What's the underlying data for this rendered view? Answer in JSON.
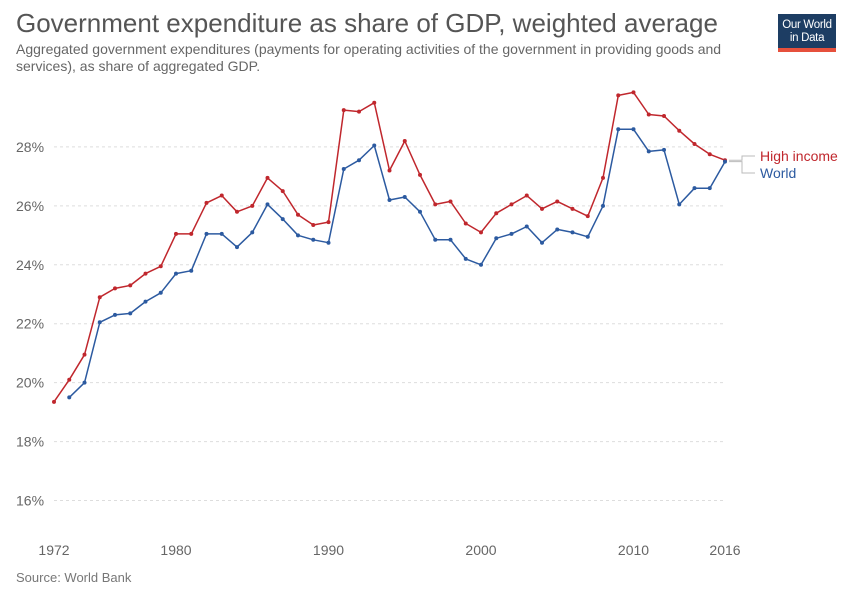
{
  "header": {
    "title": "Government expenditure as share of GDP, weighted average",
    "subtitle": "Aggregated government expenditures (payments for operating activities of the government in providing goods and services), as share of aggregated GDP.",
    "logo_line1": "Our World",
    "logo_line2": "in Data"
  },
  "footer": {
    "source": "Source: World Bank"
  },
  "chart_data": {
    "type": "line",
    "title": "Government expenditure as share of GDP, weighted average",
    "xlabel": "",
    "ylabel": "",
    "xlim": [
      1972,
      2016
    ],
    "ylim": [
      15,
      30
    ],
    "grid": true,
    "legend": "right-end labels",
    "x_ticks": [
      1972,
      1980,
      1990,
      2000,
      2010,
      2016
    ],
    "x_tick_labels": [
      "1972",
      "1980",
      "1990",
      "2000",
      "2010",
      "2016"
    ],
    "y_ticks": [
      16,
      18,
      20,
      22,
      24,
      26,
      28
    ],
    "y_tick_labels": [
      "16%",
      "18%",
      "20%",
      "22%",
      "24%",
      "26%",
      "28%"
    ],
    "series": [
      {
        "name": "High income",
        "color": "#c0272d",
        "x": [
          1972,
          1973,
          1974,
          1975,
          1976,
          1977,
          1978,
          1979,
          1980,
          1981,
          1982,
          1983,
          1984,
          1985,
          1986,
          1987,
          1988,
          1989,
          1990,
          1991,
          1992,
          1993,
          1994,
          1995,
          1996,
          1997,
          1998,
          1999,
          2000,
          2001,
          2002,
          2003,
          2004,
          2005,
          2006,
          2007,
          2008,
          2009,
          2010,
          2011,
          2012,
          2013,
          2014,
          2015,
          2016
        ],
        "values": [
          19.35,
          20.1,
          20.95,
          22.9,
          23.2,
          23.3,
          23.7,
          23.95,
          25.05,
          25.05,
          26.1,
          26.35,
          25.8,
          26.0,
          26.95,
          26.5,
          25.7,
          25.35,
          25.45,
          29.25,
          29.2,
          29.5,
          27.2,
          28.2,
          27.05,
          26.05,
          26.15,
          25.4,
          25.1,
          25.75,
          26.05,
          26.35,
          25.9,
          26.15,
          25.9,
          25.65,
          26.95,
          29.75,
          29.85,
          29.1,
          29.05,
          28.55,
          28.1,
          27.75,
          27.55
        ]
      },
      {
        "name": "World",
        "color": "#2c5aa0",
        "x": [
          1973,
          1974,
          1975,
          1976,
          1977,
          1978,
          1979,
          1980,
          1981,
          1982,
          1983,
          1984,
          1985,
          1986,
          1987,
          1988,
          1989,
          1990,
          1991,
          1992,
          1993,
          1994,
          1995,
          1996,
          1997,
          1998,
          1999,
          2000,
          2001,
          2002,
          2003,
          2004,
          2005,
          2006,
          2007,
          2008,
          2009,
          2010,
          2011,
          2012,
          2013,
          2014,
          2015,
          2016
        ],
        "values": [
          19.5,
          20.0,
          22.05,
          22.3,
          22.35,
          22.75,
          23.05,
          23.7,
          23.8,
          25.05,
          25.05,
          24.6,
          25.1,
          26.05,
          25.55,
          25.0,
          24.85,
          24.75,
          27.25,
          27.55,
          28.05,
          26.2,
          26.3,
          25.8,
          24.85,
          24.85,
          24.2,
          24.0,
          24.9,
          25.05,
          25.3,
          24.75,
          25.2,
          25.1,
          24.95,
          26.0,
          28.6,
          28.6,
          27.85,
          27.9,
          26.05,
          26.6,
          26.6,
          27.5
        ]
      }
    ]
  }
}
